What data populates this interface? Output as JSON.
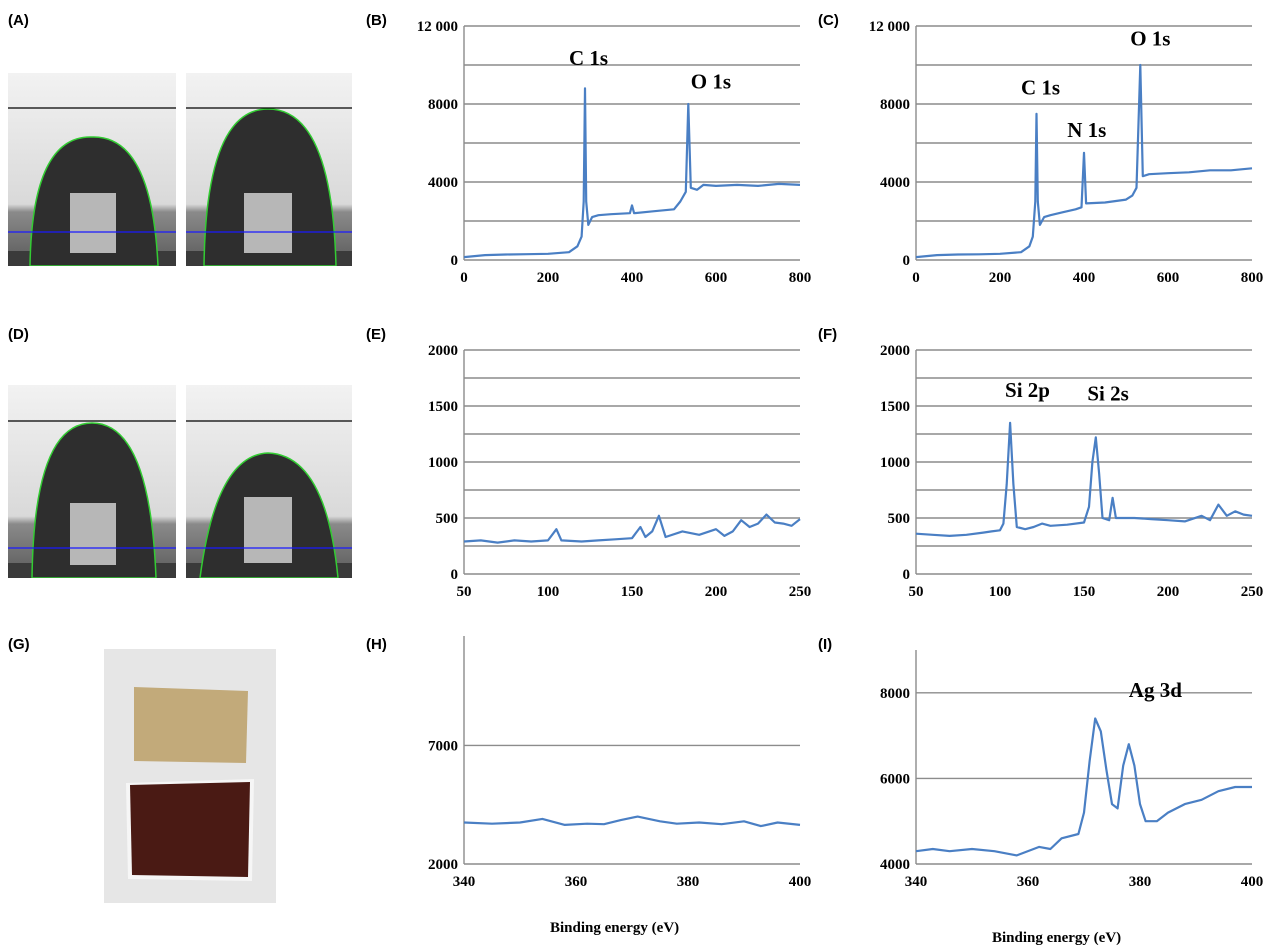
{
  "panel_labels": {
    "A": "(A)",
    "B": "(B)",
    "C": "(C)",
    "D": "(D)",
    "E": "(E)",
    "F": "(F)",
    "G": "(G)",
    "H": "(H)",
    "I": "(I)"
  },
  "x_axis_label": "Binding energy (eV)",
  "colors": {
    "line": "#4a7fc4",
    "grid": "#8c8c8c",
    "droplet_outline": "#33cc33",
    "baseline": "#1a1aff",
    "top_line": "#000000",
    "film_top": "#c2aa7a",
    "film_bottom": "#4a1a14"
  },
  "chart_data": [
    {
      "id": "B",
      "type": "line",
      "xlim": [
        0,
        800
      ],
      "ylim": [
        0,
        12000
      ],
      "xticks": [
        "0",
        "200",
        "400",
        "600",
        "800"
      ],
      "yticks": [
        "0",
        "4000",
        "8000",
        "12 000"
      ],
      "grid": true,
      "annotations": [
        {
          "text": "C 1s",
          "x": 250,
          "y": 10000
        },
        {
          "text": "O 1s",
          "x": 540,
          "y": 8800
        }
      ],
      "series": [
        {
          "points": [
            [
              0,
              150
            ],
            [
              50,
              250
            ],
            [
              100,
              280
            ],
            [
              150,
              300
            ],
            [
              200,
              320
            ],
            [
              250,
              400
            ],
            [
              270,
              700
            ],
            [
              280,
              1200
            ],
            [
              285,
              3000
            ],
            [
              288,
              8800
            ],
            [
              291,
              3000
            ],
            [
              296,
              1800
            ],
            [
              305,
              2200
            ],
            [
              320,
              2300
            ],
            [
              350,
              2350
            ],
            [
              395,
              2400
            ],
            [
              400,
              2800
            ],
            [
              405,
              2400
            ],
            [
              450,
              2500
            ],
            [
              500,
              2600
            ],
            [
              515,
              3000
            ],
            [
              528,
              3500
            ],
            [
              534,
              8000
            ],
            [
              540,
              3700
            ],
            [
              555,
              3600
            ],
            [
              570,
              3850
            ],
            [
              600,
              3800
            ],
            [
              650,
              3850
            ],
            [
              700,
              3800
            ],
            [
              750,
              3900
            ],
            [
              800,
              3850
            ]
          ]
        }
      ]
    },
    {
      "id": "C",
      "type": "line",
      "xlim": [
        0,
        800
      ],
      "ylim": [
        0,
        12000
      ],
      "xticks": [
        "0",
        "200",
        "400",
        "600",
        "800"
      ],
      "yticks": [
        "0",
        "4000",
        "8000",
        "12 000"
      ],
      "grid": true,
      "annotations": [
        {
          "text": "C 1s",
          "x": 250,
          "y": 8500
        },
        {
          "text": "N 1s",
          "x": 360,
          "y": 6300
        },
        {
          "text": "O 1s",
          "x": 510,
          "y": 11000
        }
      ],
      "series": [
        {
          "points": [
            [
              0,
              150
            ],
            [
              50,
              250
            ],
            [
              100,
              280
            ],
            [
              150,
              290
            ],
            [
              200,
              320
            ],
            [
              250,
              400
            ],
            [
              270,
              700
            ],
            [
              278,
              1200
            ],
            [
              284,
              3000
            ],
            [
              287,
              7500
            ],
            [
              290,
              3000
            ],
            [
              295,
              1800
            ],
            [
              305,
              2200
            ],
            [
              320,
              2300
            ],
            [
              350,
              2450
            ],
            [
              380,
              2600
            ],
            [
              394,
              2700
            ],
            [
              400,
              5500
            ],
            [
              405,
              2900
            ],
            [
              450,
              2950
            ],
            [
              500,
              3100
            ],
            [
              515,
              3300
            ],
            [
              525,
              3700
            ],
            [
              534,
              10000
            ],
            [
              540,
              4300
            ],
            [
              555,
              4400
            ],
            [
              600,
              4450
            ],
            [
              650,
              4500
            ],
            [
              700,
              4600
            ],
            [
              750,
              4600
            ],
            [
              800,
              4700
            ]
          ]
        }
      ]
    },
    {
      "id": "E",
      "type": "line",
      "xlim": [
        50,
        250
      ],
      "ylim": [
        0,
        2000
      ],
      "xticks": [
        "50",
        "100",
        "150",
        "200",
        "250"
      ],
      "yticks": [
        "0",
        "500",
        "1000",
        "1500",
        "2000"
      ],
      "grid": true,
      "annotations": [],
      "series": [
        {
          "points": [
            [
              50,
              290
            ],
            [
              60,
              300
            ],
            [
              70,
              280
            ],
            [
              80,
              300
            ],
            [
              90,
              290
            ],
            [
              100,
              300
            ],
            [
              105,
              400
            ],
            [
              108,
              300
            ],
            [
              120,
              290
            ],
            [
              130,
              300
            ],
            [
              140,
              310
            ],
            [
              150,
              320
            ],
            [
              155,
              420
            ],
            [
              158,
              330
            ],
            [
              162,
              380
            ],
            [
              166,
              520
            ],
            [
              170,
              330
            ],
            [
              180,
              380
            ],
            [
              190,
              350
            ],
            [
              200,
              400
            ],
            [
              205,
              340
            ],
            [
              210,
              380
            ],
            [
              215,
              480
            ],
            [
              220,
              420
            ],
            [
              225,
              450
            ],
            [
              230,
              530
            ],
            [
              235,
              460
            ],
            [
              240,
              450
            ],
            [
              245,
              430
            ],
            [
              250,
              490
            ]
          ]
        }
      ]
    },
    {
      "id": "F",
      "type": "line",
      "xlim": [
        50,
        250
      ],
      "ylim": [
        0,
        2000
      ],
      "xticks": [
        "50",
        "100",
        "150",
        "200",
        "250"
      ],
      "yticks": [
        "0",
        "500",
        "1000",
        "1500",
        "2000"
      ],
      "grid": true,
      "annotations": [
        {
          "text": "Si 2p",
          "x": 103,
          "y": 1580
        },
        {
          "text": "Si 2s",
          "x": 152,
          "y": 1550
        }
      ],
      "series": [
        {
          "points": [
            [
              50,
              360
            ],
            [
              60,
              350
            ],
            [
              70,
              340
            ],
            [
              80,
              350
            ],
            [
              90,
              370
            ],
            [
              95,
              380
            ],
            [
              100,
              390
            ],
            [
              102,
              450
            ],
            [
              104,
              800
            ],
            [
              106,
              1350
            ],
            [
              108,
              800
            ],
            [
              110,
              420
            ],
            [
              115,
              400
            ],
            [
              120,
              420
            ],
            [
              125,
              450
            ],
            [
              130,
              430
            ],
            [
              140,
              440
            ],
            [
              150,
              460
            ],
            [
              153,
              600
            ],
            [
              155,
              1000
            ],
            [
              157,
              1220
            ],
            [
              159,
              900
            ],
            [
              161,
              500
            ],
            [
              165,
              480
            ],
            [
              167,
              680
            ],
            [
              169,
              500
            ],
            [
              180,
              500
            ],
            [
              190,
              490
            ],
            [
              200,
              480
            ],
            [
              210,
              470
            ],
            [
              220,
              520
            ],
            [
              225,
              480
            ],
            [
              230,
              620
            ],
            [
              235,
              520
            ],
            [
              240,
              560
            ],
            [
              245,
              530
            ],
            [
              250,
              520
            ]
          ]
        }
      ]
    },
    {
      "id": "H",
      "type": "line",
      "xlim": [
        340,
        400
      ],
      "ylim": [
        2000,
        9000
      ],
      "xticks": [
        "340",
        "360",
        "380",
        "400"
      ],
      "yticks": [
        "2000",
        "7000"
      ],
      "grid": true,
      "annotations": [],
      "series": [
        {
          "points": [
            [
              340,
              3750
            ],
            [
              345,
              3700
            ],
            [
              350,
              3750
            ],
            [
              354,
              3900
            ],
            [
              358,
              3650
            ],
            [
              362,
              3700
            ],
            [
              365,
              3680
            ],
            [
              368,
              3850
            ],
            [
              371,
              4000
            ],
            [
              375,
              3800
            ],
            [
              378,
              3700
            ],
            [
              382,
              3750
            ],
            [
              386,
              3680
            ],
            [
              390,
              3800
            ],
            [
              393,
              3600
            ],
            [
              396,
              3750
            ],
            [
              400,
              3650
            ]
          ]
        }
      ]
    },
    {
      "id": "I",
      "type": "line",
      "xlim": [
        340,
        400
      ],
      "ylim": [
        4000,
        9000
      ],
      "xticks": [
        "340",
        "360",
        "380",
        "400"
      ],
      "yticks": [
        "4000",
        "6000",
        "8000"
      ],
      "grid": true,
      "annotations": [
        {
          "text": "Ag 3d",
          "x": 378,
          "y": 7900
        }
      ],
      "series": [
        {
          "points": [
            [
              340,
              4300
            ],
            [
              343,
              4350
            ],
            [
              346,
              4300
            ],
            [
              350,
              4350
            ],
            [
              354,
              4300
            ],
            [
              358,
              4200
            ],
            [
              362,
              4400
            ],
            [
              364,
              4350
            ],
            [
              366,
              4600
            ],
            [
              369,
              4700
            ],
            [
              370,
              5200
            ],
            [
              371,
              6400
            ],
            [
              372,
              7400
            ],
            [
              373,
              7100
            ],
            [
              374,
              6200
            ],
            [
              375,
              5400
            ],
            [
              376,
              5300
            ],
            [
              377,
              6300
            ],
            [
              378,
              6800
            ],
            [
              379,
              6300
            ],
            [
              380,
              5400
            ],
            [
              381,
              5000
            ],
            [
              383,
              5000
            ],
            [
              385,
              5200
            ],
            [
              388,
              5400
            ],
            [
              391,
              5500
            ],
            [
              394,
              5700
            ],
            [
              397,
              5800
            ],
            [
              400,
              5800
            ]
          ]
        }
      ]
    }
  ]
}
